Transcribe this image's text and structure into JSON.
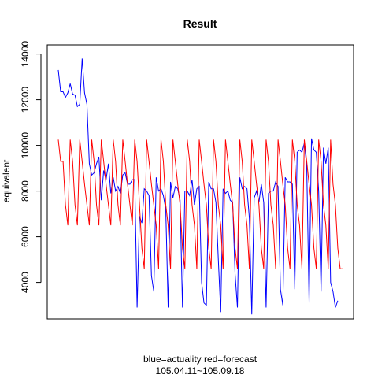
{
  "chart_data": {
    "type": "line",
    "title": "Result",
    "xlabel_line1": "blue=actuality red=forecast",
    "xlabel_line2": "105.04.11~105.09.18",
    "ylabel": "equivalent",
    "ylim": [
      2400,
      14400
    ],
    "y_ticks": [
      4000,
      6000,
      8000,
      10000,
      12000,
      14000
    ],
    "x_axis_ticks_shown": false,
    "grid": false,
    "series": [
      {
        "name": "actuality",
        "color": "#0000ff",
        "values": [
          13300,
          12350,
          12350,
          12100,
          12300,
          12700,
          12250,
          12200,
          11700,
          11800,
          13800,
          12300,
          11800,
          9200,
          8700,
          8800,
          9200,
          9500,
          7600,
          8900,
          8500,
          9200,
          7900,
          8600,
          8000,
          8200,
          7900,
          8700,
          8800,
          8300,
          8300,
          8500,
          8500,
          2900,
          6900,
          6600,
          8100,
          8000,
          7800,
          4300,
          3600,
          8600,
          8000,
          8100,
          7800,
          7200,
          2900,
          8400,
          7700,
          8200,
          8100,
          7600,
          2900,
          8000,
          8000,
          7800,
          8500,
          7400,
          8100,
          8200,
          4000,
          3100,
          3000,
          8400,
          8100,
          8100,
          7500,
          5000,
          2700,
          8100,
          7900,
          8000,
          7600,
          7500,
          4400,
          2900,
          8600,
          8100,
          8200,
          8100,
          6800,
          2600,
          7700,
          8000,
          7500,
          8300,
          7500,
          2900,
          7900,
          8000,
          8000,
          8400,
          8200,
          3700,
          3000,
          8600,
          8400,
          8400,
          8300,
          3700,
          9700,
          9800,
          9700,
          10100,
          9100,
          3100,
          10300,
          9800,
          9700,
          8000,
          3600,
          9900,
          9200,
          9900,
          4000,
          3600,
          2900,
          3200
        ]
      },
      {
        "name": "forecast",
        "color": "#ff0000",
        "values": [
          10250,
          9300,
          9300,
          7400,
          6500,
          10250,
          9300,
          7400,
          6500,
          10250,
          9300,
          8300,
          7400,
          6500,
          10250,
          9300,
          7400,
          6500,
          10250,
          9300,
          8300,
          7400,
          6500,
          10250,
          9300,
          7400,
          6500,
          10250,
          9300,
          8300,
          7400,
          6500,
          10250,
          9300,
          7400,
          5500,
          4600,
          10250,
          9300,
          8300,
          7400,
          6500,
          4600,
          10250,
          9300,
          7400,
          6500,
          4600,
          10250,
          9300,
          8300,
          7400,
          5500,
          4600,
          10250,
          9300,
          7400,
          6500,
          4600,
          10250,
          9300,
          8300,
          7400,
          5500,
          4600,
          10250,
          9300,
          7400,
          6500,
          4600,
          10250,
          9300,
          8300,
          7400,
          5500,
          4600,
          10250,
          9300,
          7400,
          6500,
          4600,
          10250,
          9300,
          8300,
          7400,
          5500,
          4600,
          10250,
          9300,
          7400,
          6500,
          4600,
          10250,
          9300,
          8300,
          7400,
          5500,
          4600,
          10250,
          9300,
          7400,
          6500,
          4600,
          10250,
          9300,
          8300,
          7400,
          5500,
          4600,
          10250,
          9300,
          7400,
          6500,
          4600,
          10250,
          8300,
          7400,
          5500,
          4600,
          4600
        ]
      }
    ]
  }
}
